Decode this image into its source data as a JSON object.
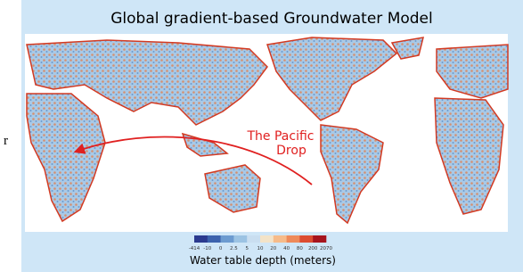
{
  "header": {
    "title": "Global gradient-based Groundwater Model"
  },
  "side_text": "r",
  "annotation": {
    "line1": "The Pacific",
    "line2": "Drop"
  },
  "colorbar": {
    "ticks": [
      -414,
      -10,
      0,
      2.5,
      5,
      10,
      20,
      40,
      80,
      200,
      2070
    ],
    "colors": [
      "#2b3a8f",
      "#3c62ad",
      "#6c9bd0",
      "#9cc3e3",
      "#c9def0",
      "#f3e3c8",
      "#f6bb8a",
      "#ee8a5a",
      "#dc4c31",
      "#a6141d"
    ]
  },
  "caption": "Water table depth (meters)"
}
